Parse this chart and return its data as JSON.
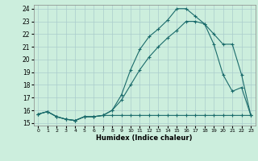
{
  "title": "",
  "xlabel": "Humidex (Indice chaleur)",
  "bg_color": "#cceedd",
  "grid_color": "#aacccc",
  "line_color": "#1a6b6b",
  "xlim": [
    -0.5,
    23.5
  ],
  "ylim": [
    14.8,
    24.3
  ],
  "xticks": [
    0,
    1,
    2,
    3,
    4,
    5,
    6,
    7,
    8,
    9,
    10,
    11,
    12,
    13,
    14,
    15,
    16,
    17,
    18,
    19,
    20,
    21,
    22,
    23
  ],
  "yticks": [
    15,
    16,
    17,
    18,
    19,
    20,
    21,
    22,
    23,
    24
  ],
  "line1_x": [
    0,
    1,
    2,
    3,
    4,
    5,
    6,
    7,
    8,
    9,
    10,
    11,
    12,
    13,
    14,
    15,
    16,
    17,
    18,
    19,
    20,
    21,
    22,
    23
  ],
  "line1_y": [
    15.7,
    15.9,
    15.5,
    15.3,
    15.2,
    15.5,
    15.5,
    15.6,
    15.6,
    15.6,
    15.6,
    15.6,
    15.6,
    15.6,
    15.6,
    15.6,
    15.6,
    15.6,
    15.6,
    15.6,
    15.6,
    15.6,
    15.6,
    15.6
  ],
  "line2_x": [
    0,
    1,
    2,
    3,
    4,
    5,
    6,
    7,
    8,
    9,
    10,
    11,
    12,
    13,
    14,
    15,
    16,
    17,
    18,
    19,
    20,
    21,
    22,
    23
  ],
  "line2_y": [
    15.7,
    15.9,
    15.5,
    15.3,
    15.2,
    15.5,
    15.5,
    15.6,
    16.0,
    17.2,
    19.2,
    20.8,
    21.8,
    22.4,
    23.1,
    24.0,
    24.0,
    23.4,
    22.8,
    21.2,
    18.8,
    17.5,
    17.8,
    15.6
  ],
  "line3_x": [
    0,
    1,
    2,
    3,
    4,
    5,
    6,
    7,
    8,
    9,
    10,
    11,
    12,
    13,
    14,
    15,
    16,
    17,
    18,
    19,
    20,
    21,
    22,
    23
  ],
  "line3_y": [
    15.7,
    15.9,
    15.5,
    15.3,
    15.2,
    15.5,
    15.5,
    15.6,
    16.0,
    16.8,
    18.0,
    19.2,
    20.2,
    21.0,
    21.7,
    22.3,
    23.0,
    23.0,
    22.8,
    22.0,
    21.2,
    21.2,
    18.8,
    15.6
  ]
}
